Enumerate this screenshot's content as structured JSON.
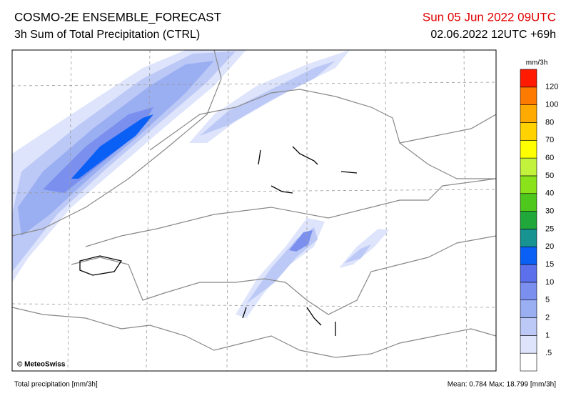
{
  "header": {
    "title": "COSMO-2E ENSEMBLE_FORECAST",
    "subtitle": "3h Sum of Total Precipitation (CTRL)",
    "valid_time": "Sun 05 Jun 2022 09UTC",
    "run_time": "02.06.2022 12UTC +69h"
  },
  "map": {
    "credit": "© MeteoSwiss"
  },
  "legend": {
    "unit": "mm/3h",
    "labels": [
      ".5",
      "1",
      "2",
      "5",
      "10",
      "15",
      "20",
      "25",
      "30",
      "40",
      "50",
      "60",
      "70",
      "80",
      "100",
      "120"
    ],
    "colors": [
      "#ffffff",
      "#dde4fb",
      "#bcc9f6",
      "#9aaef2",
      "#7b90ee",
      "#5c70ec",
      "#0a5ff5",
      "#179391",
      "#21a83a",
      "#4fc81e",
      "#8ae21a",
      "#c2f23c",
      "#ffff00",
      "#ffd200",
      "#ffaa00",
      "#ff7a00",
      "#ff1a00"
    ]
  },
  "footer": {
    "left": "Total precipitation [mm/3h]",
    "right": "Mean:  0.784 Max: 18.799 [mm/3h]"
  }
}
